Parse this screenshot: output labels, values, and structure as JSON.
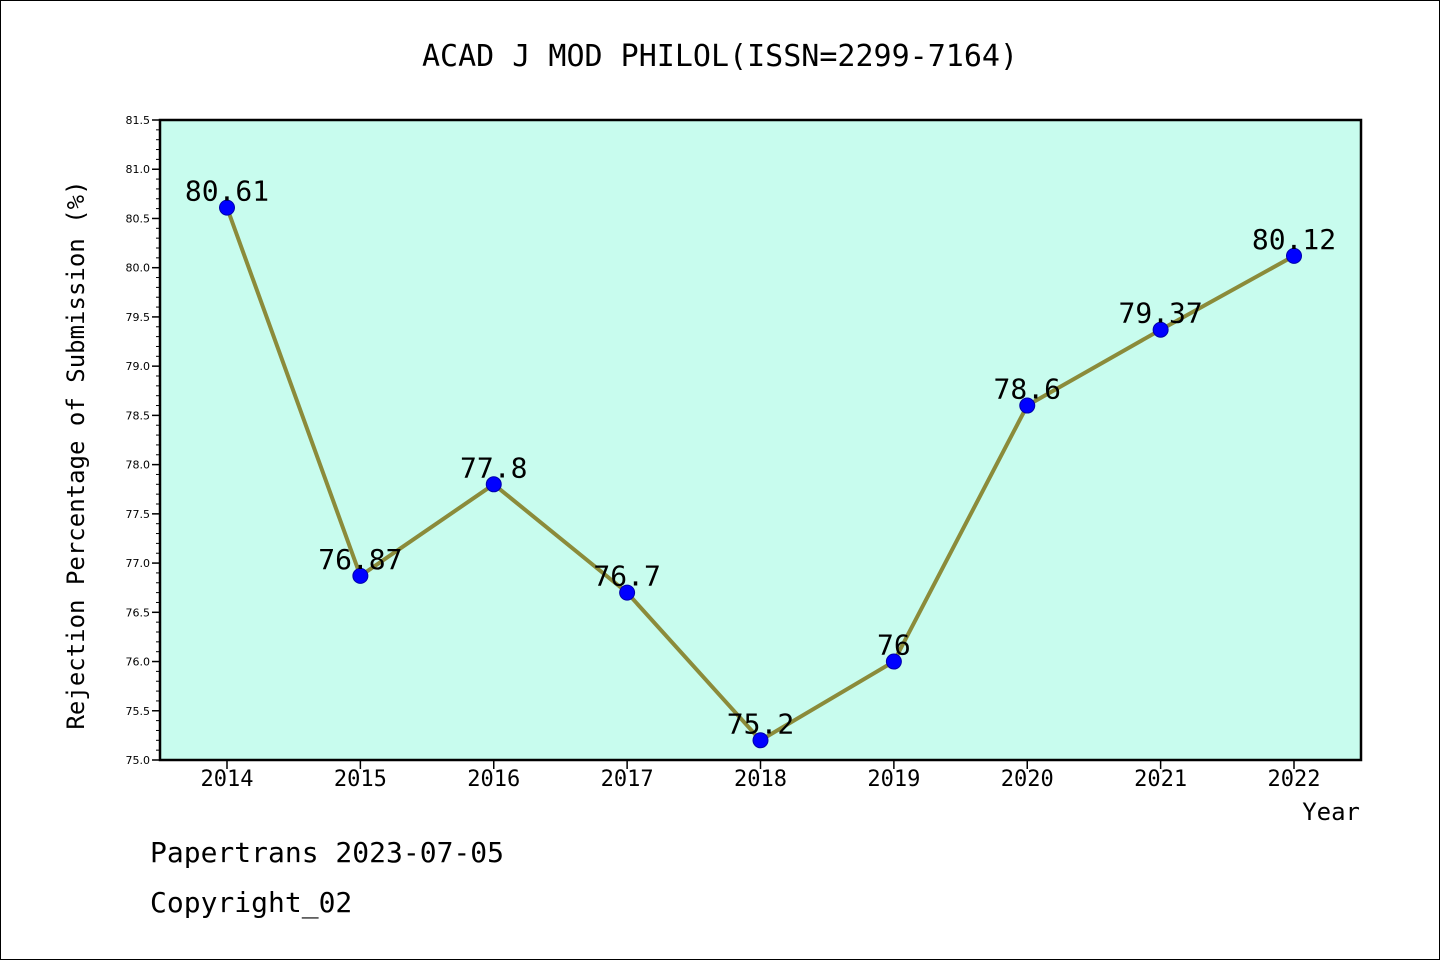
{
  "chart_data": {
    "type": "line",
    "title": "ACAD J MOD PHILOL(ISSN=2299-7164)",
    "xlabel": "Year",
    "ylabel": "Rejection Percentage of Submission (%)",
    "categories": [
      "2014",
      "2015",
      "2016",
      "2017",
      "2018",
      "2019",
      "2020",
      "2021",
      "2022"
    ],
    "values": [
      80.61,
      76.87,
      77.8,
      76.7,
      75.2,
      76,
      78.6,
      79.37,
      80.12
    ],
    "data_labels": [
      "80.61",
      "76.87",
      "77.8",
      "76.7",
      "75.2",
      "76",
      "78.6",
      "79.37",
      "80.12"
    ],
    "ylim": [
      75.0,
      81.5
    ],
    "yticks": [
      "75.0",
      "75.5",
      "76.0",
      "76.5",
      "77.0",
      "77.5",
      "78.0",
      "78.5",
      "79.0",
      "79.5",
      "80.0",
      "80.5",
      "81.0",
      "81.5"
    ],
    "grid": false,
    "colors": {
      "plot_background": "#c8fcee",
      "line": "#8b8b3a",
      "marker": "#0000ff"
    }
  },
  "footer": {
    "line1": "Papertrans 2023-07-05",
    "line2": "Copyright_02"
  }
}
